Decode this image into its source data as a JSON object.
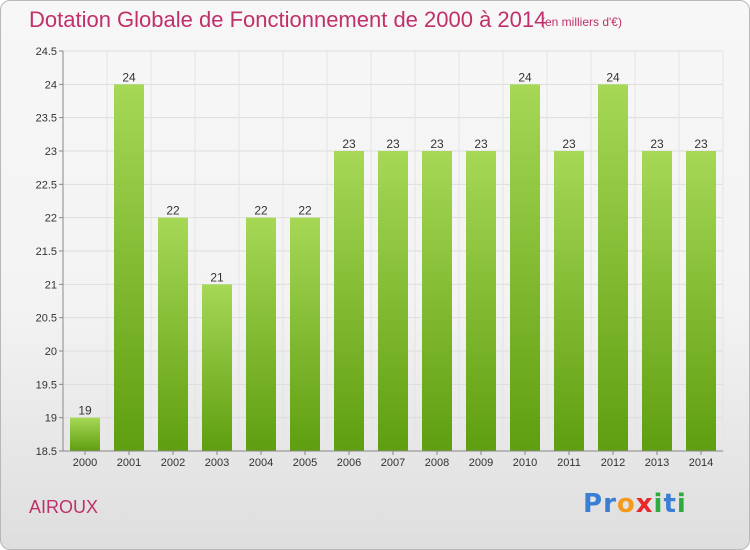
{
  "title": "Dotation Globale de Fonctionnement de 2000 à 2014",
  "unit": "(en milliers d'€)",
  "commune": "AIROUX",
  "logo": {
    "letters": [
      {
        "ch": "P",
        "color": "#3a7fd5"
      },
      {
        "ch": "r",
        "color": "#3a7fd5"
      },
      {
        "ch": "o",
        "color": "#f39a1e"
      },
      {
        "ch": "x",
        "color": "#e8282d"
      },
      {
        "ch": "i",
        "color": "#2faa3c"
      },
      {
        "ch": "t",
        "color": "#3a7fd5"
      },
      {
        "ch": "i",
        "color": "#2faa3c"
      }
    ]
  },
  "chart_data": {
    "type": "bar",
    "title": "Dotation Globale de Fonctionnement de 2000 à 2014",
    "subtitle": "(en milliers d'€)",
    "categories": [
      "2000",
      "2001",
      "2002",
      "2003",
      "2004",
      "2005",
      "2006",
      "2007",
      "2008",
      "2009",
      "2010",
      "2011",
      "2012",
      "2013",
      "2014"
    ],
    "values": [
      19,
      24,
      22,
      21,
      22,
      22,
      23,
      23,
      23,
      23,
      24,
      23,
      24,
      23,
      23
    ],
    "ylim": [
      18.5,
      24.5
    ],
    "yticks": [
      18.5,
      19,
      19.5,
      20,
      20.5,
      21,
      21.5,
      22,
      22.5,
      23,
      23.5,
      24,
      24.5
    ],
    "ytick_labels": [
      "18.5",
      "19",
      "19.5",
      "20",
      "20.5",
      "21",
      "21.5",
      "22",
      "22.5",
      "23",
      "23.5",
      "24",
      "24.5"
    ],
    "grid": true,
    "colors": {
      "bar_top": "#a6d856",
      "bar_bottom": "#5f9e10",
      "accent": "#c0306a"
    }
  }
}
